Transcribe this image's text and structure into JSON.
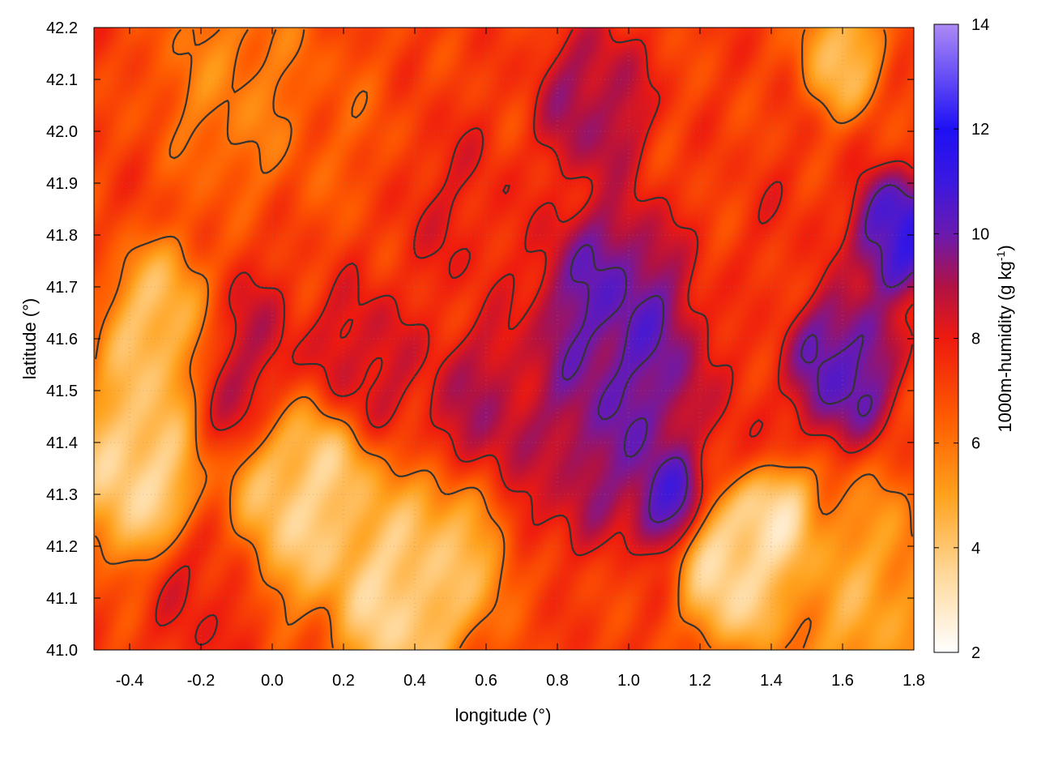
{
  "chart_data": {
    "type": "heatmap",
    "title": "",
    "xlabel": "longitude (°)",
    "ylabel": "latitude (°)",
    "colorbar_label_main": "1000m-humidity (g kg",
    "colorbar_label_sup": "-1",
    "colorbar_label_end": ")",
    "xlim": [
      -0.5,
      1.8
    ],
    "ylim": [
      41.0,
      42.2
    ],
    "xticks": [
      {
        "value": -0.4,
        "label": "-0.4"
      },
      {
        "value": -0.2,
        "label": "-0.2"
      },
      {
        "value": 0.0,
        "label": "0.0"
      },
      {
        "value": 0.2,
        "label": "0.2"
      },
      {
        "value": 0.4,
        "label": "0.4"
      },
      {
        "value": 0.6,
        "label": "0.6"
      },
      {
        "value": 0.8,
        "label": "0.8"
      },
      {
        "value": 1.0,
        "label": "1.0"
      },
      {
        "value": 1.2,
        "label": "1.2"
      },
      {
        "value": 1.4,
        "label": "1.4"
      },
      {
        "value": 1.6,
        "label": "1.6"
      },
      {
        "value": 1.8,
        "label": "1.8"
      }
    ],
    "yticks": [
      {
        "value": 41.0,
        "label": "41.0"
      },
      {
        "value": 41.1,
        "label": "41.1"
      },
      {
        "value": 41.2,
        "label": "41.2"
      },
      {
        "value": 41.3,
        "label": "41.3"
      },
      {
        "value": 41.4,
        "label": "41.4"
      },
      {
        "value": 41.5,
        "label": "41.5"
      },
      {
        "value": 41.6,
        "label": "41.6"
      },
      {
        "value": 41.7,
        "label": "41.7"
      },
      {
        "value": 41.8,
        "label": "41.8"
      },
      {
        "value": 41.9,
        "label": "41.9"
      },
      {
        "value": 42.0,
        "label": "42.0"
      },
      {
        "value": 42.1,
        "label": "42.1"
      },
      {
        "value": 42.2,
        "label": "42.2"
      }
    ],
    "colorbar": {
      "range": [
        2,
        14
      ],
      "ticks": [
        {
          "value": 2,
          "label": "2"
        },
        {
          "value": 4,
          "label": "4"
        },
        {
          "value": 6,
          "label": "6"
        },
        {
          "value": 8,
          "label": "8"
        },
        {
          "value": 10,
          "label": "10"
        },
        {
          "value": 12,
          "label": "12"
        },
        {
          "value": 14,
          "label": "14"
        }
      ],
      "palette": [
        {
          "value": 2,
          "color": "#ffffff"
        },
        {
          "value": 3.5,
          "color": "#ffd89a"
        },
        {
          "value": 5,
          "color": "#ffa21c"
        },
        {
          "value": 6.5,
          "color": "#ff5a00"
        },
        {
          "value": 8,
          "color": "#ee1a0f"
        },
        {
          "value": 9,
          "color": "#b01245"
        },
        {
          "value": 10,
          "color": "#6a1ab0"
        },
        {
          "value": 11,
          "color": "#3a18e0"
        },
        {
          "value": 12,
          "color": "#1e10f5"
        },
        {
          "value": 14,
          "color": "#ad8af5"
        }
      ]
    },
    "grid": true,
    "contours": true,
    "field_features": [
      {
        "lon": -0.3,
        "lat": 41.6,
        "humidity": 3.5,
        "spread": 0.12
      },
      {
        "lon": -0.38,
        "lat": 41.35,
        "humidity": 3.0,
        "spread": 0.12
      },
      {
        "lon": -0.1,
        "lat": 41.55,
        "humidity": 9.0,
        "spread": 0.12
      },
      {
        "lon": 0.1,
        "lat": 41.3,
        "humidity": 3.2,
        "spread": 0.14
      },
      {
        "lon": 0.35,
        "lat": 41.1,
        "humidity": 3.0,
        "spread": 0.12
      },
      {
        "lon": 0.5,
        "lat": 41.2,
        "humidity": 4.0,
        "spread": 0.12
      },
      {
        "lon": -0.2,
        "lat": 41.1,
        "humidity": 8.0,
        "spread": 0.1
      },
      {
        "lon": 0.25,
        "lat": 41.55,
        "humidity": 8.8,
        "spread": 0.1
      },
      {
        "lon": 0.6,
        "lat": 41.45,
        "humidity": 9.2,
        "spread": 0.12
      },
      {
        "lon": 0.95,
        "lat": 41.65,
        "humidity": 10.6,
        "spread": 0.14
      },
      {
        "lon": 0.9,
        "lat": 41.4,
        "humidity": 9.8,
        "spread": 0.12
      },
      {
        "lon": 1.05,
        "lat": 41.5,
        "humidity": 10.2,
        "spread": 0.12
      },
      {
        "lon": 1.1,
        "lat": 41.3,
        "humidity": 11.0,
        "spread": 0.07
      },
      {
        "lon": 1.3,
        "lat": 41.15,
        "humidity": 2.8,
        "spread": 0.1
      },
      {
        "lon": 1.4,
        "lat": 41.25,
        "humidity": 2.6,
        "spread": 0.08
      },
      {
        "lon": 1.65,
        "lat": 41.1,
        "humidity": 4.5,
        "spread": 0.15
      },
      {
        "lon": 1.6,
        "lat": 41.55,
        "humidity": 10.8,
        "spread": 0.1
      },
      {
        "lon": 1.75,
        "lat": 41.8,
        "humidity": 11.6,
        "spread": 0.08
      },
      {
        "lon": 1.45,
        "lat": 41.8,
        "humidity": 7.6,
        "spread": 0.1
      },
      {
        "lon": 1.3,
        "lat": 41.45,
        "humidity": 7.8,
        "spread": 0.1
      },
      {
        "lon": 0.9,
        "lat": 42.05,
        "humidity": 9.5,
        "spread": 0.1
      },
      {
        "lon": 1.6,
        "lat": 42.15,
        "humidity": 4.0,
        "spread": 0.08
      },
      {
        "lon": -0.1,
        "lat": 42.1,
        "humidity": 5.5,
        "spread": 0.15
      },
      {
        "lon": 0.2,
        "lat": 42.0,
        "humidity": 6.5,
        "spread": 0.12
      },
      {
        "lon": 0.5,
        "lat": 41.85,
        "humidity": 8.0,
        "spread": 0.12
      },
      {
        "lon": 0.75,
        "lat": 41.3,
        "humidity": 8.2,
        "spread": 0.08
      }
    ],
    "base_humidity": 7.2
  }
}
